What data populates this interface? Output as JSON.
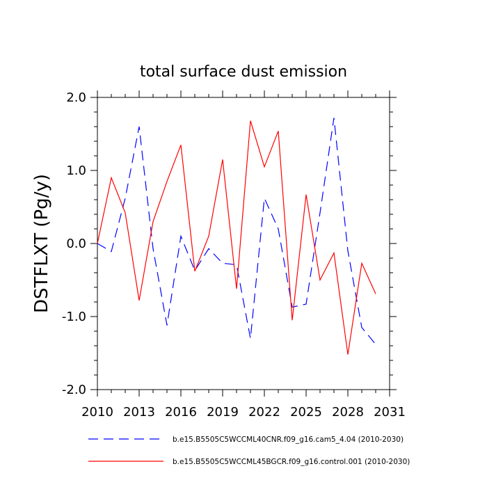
{
  "chart_data": {
    "type": "line",
    "title": "total surface dust emission",
    "ylabel": "DSTFLXT  (Pg/y)",
    "xlabel": "",
    "xlim": [
      2010,
      2031
    ],
    "ylim": [
      -2.0,
      2.0
    ],
    "x_ticks": [
      "2010",
      "2013",
      "2016",
      "2019",
      "2022",
      "2025",
      "2028",
      "2031"
    ],
    "y_ticks": [
      "2.0",
      "1.0",
      "0.0",
      "-1.0",
      "-2.0"
    ],
    "x": [
      2010,
      2011,
      2012,
      2013,
      2014,
      2015,
      2016,
      2017,
      2018,
      2019,
      2020,
      2021,
      2022,
      2023,
      2024,
      2025,
      2026,
      2027,
      2028,
      2029,
      2030
    ],
    "series": [
      {
        "name": "b.e15.B5505C5WCCML40CNR.f09_g16.cam5_4.04 (2010-2030)",
        "color": "#0000ff",
        "dash": "dashed",
        "values": [
          0.0,
          -0.11,
          0.62,
          1.6,
          -0.07,
          -1.12,
          0.1,
          -0.37,
          -0.07,
          -0.27,
          -0.29,
          -1.3,
          0.62,
          0.2,
          -0.87,
          -0.83,
          0.42,
          1.72,
          -0.1,
          -1.15,
          -1.38
        ]
      },
      {
        "name": "b.e15.B5505C5WCCML45BGCR.f09_g16.control.001 (2010-2030)",
        "color": "#ff0000",
        "dash": "solid",
        "values": [
          0.0,
          0.9,
          0.42,
          -0.78,
          0.3,
          0.85,
          1.35,
          -0.38,
          0.1,
          1.15,
          -0.62,
          1.68,
          1.05,
          1.54,
          -1.05,
          0.67,
          -0.5,
          -0.13,
          -1.52,
          -0.27,
          -0.69
        ]
      }
    ]
  }
}
